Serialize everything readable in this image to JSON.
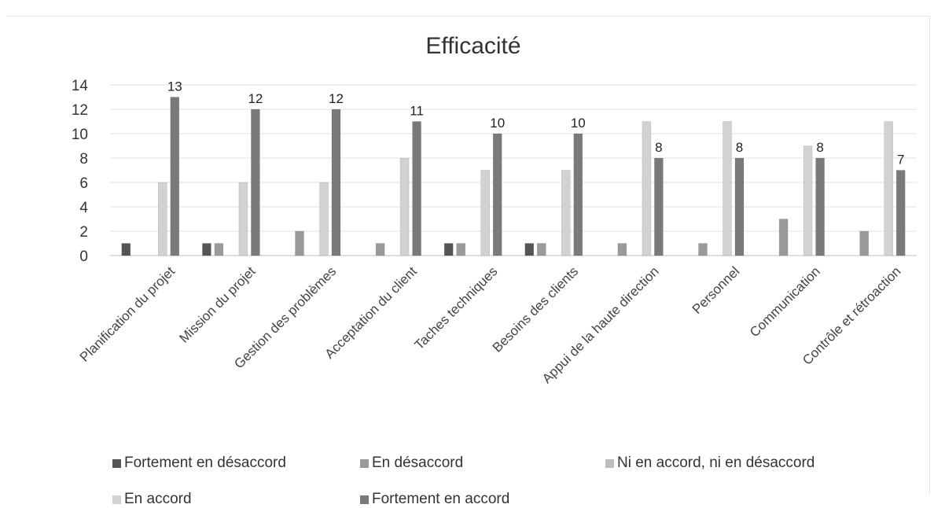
{
  "chart_data": {
    "type": "bar",
    "title": "Efficacité",
    "xlabel": "",
    "ylabel": "",
    "ylim": [
      0,
      14
    ],
    "yticks": [
      0,
      2,
      4,
      6,
      8,
      10,
      12,
      14
    ],
    "grid": true,
    "legend_position": "bottom",
    "categories": [
      "Planification du projet",
      "Mission du projet",
      "Gestion des problèmes",
      "Acceptation du client",
      "Taches techniques",
      "Besoins des clients",
      "Appui de la haute direction",
      "Personnel",
      "Communication",
      "Contrôle et rétroaction"
    ],
    "series": [
      {
        "name": "Fortement en désaccord",
        "color": "#555555",
        "values": [
          1,
          1,
          0,
          0,
          1,
          1,
          0,
          0,
          0,
          0
        ]
      },
      {
        "name": "En désaccord",
        "color": "#9a9a9a",
        "values": [
          0,
          1,
          2,
          1,
          1,
          1,
          1,
          1,
          3,
          2
        ]
      },
      {
        "name": "Ni en accord, ni en désaccord",
        "color": "#bdbdbd",
        "values": [
          0,
          0,
          0,
          0,
          0,
          0,
          0,
          0,
          0,
          0
        ]
      },
      {
        "name": "En accord",
        "color": "#d2d2d2",
        "values": [
          6,
          6,
          6,
          8,
          7,
          7,
          11,
          11,
          9,
          11
        ]
      },
      {
        "name": "Fortement en accord",
        "color": "#7a7a7a",
        "values": [
          13,
          12,
          12,
          11,
          10,
          10,
          8,
          8,
          8,
          7
        ]
      }
    ],
    "data_labels": {
      "series": "Fortement en accord",
      "values": [
        "13",
        "12",
        "12",
        "11",
        "10",
        "10",
        "8",
        "8",
        "8",
        "7"
      ]
    }
  }
}
